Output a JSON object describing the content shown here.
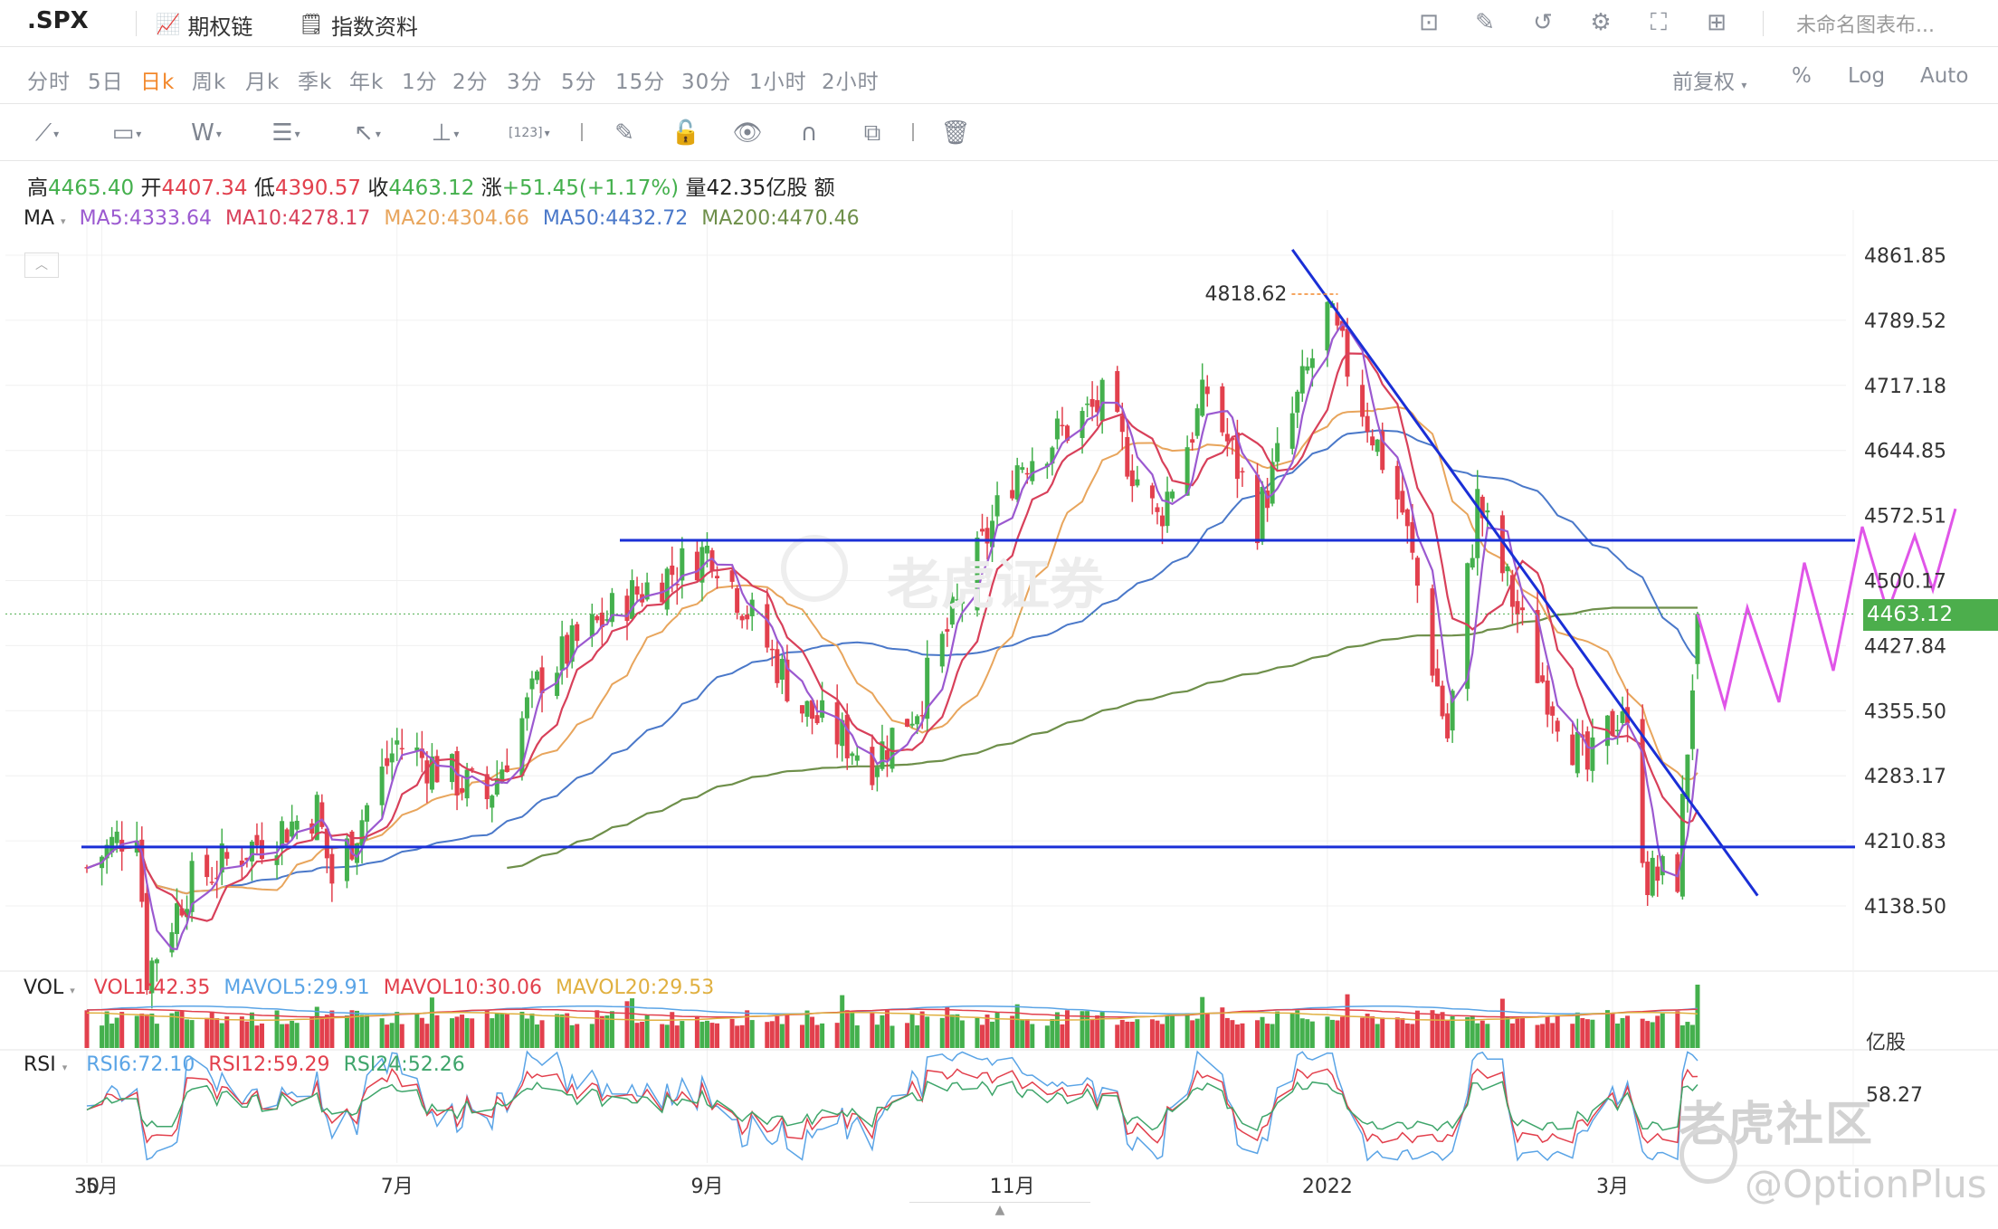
{
  "header": {
    "symbol": ".SPX",
    "options_chain_label": "期权链",
    "index_info_label": "指数资料",
    "layout_name": "未命名图表布...",
    "icons": [
      "chart-icon",
      "edit-icon",
      "refresh-icon",
      "settings-icon",
      "fullscreen-icon",
      "layout-grid-icon"
    ]
  },
  "periods": [
    "分时",
    "5日",
    "日k",
    "周k",
    "月k",
    "季k",
    "年k",
    "1分",
    "2分",
    "3分",
    "5分",
    "15分",
    "30分",
    "1小时",
    "2小时"
  ],
  "active_period": "日k",
  "right_options": {
    "adjust": "前复权",
    "percent": "%",
    "log": "Log",
    "auto": "Auto"
  },
  "tools": [
    "line-tool-icon",
    "rect-tool-icon",
    "wave-tool-icon",
    "fib-tool-icon",
    "arrow-tool-icon",
    "measure-tool-icon",
    "number-tool-icon",
    "brush-icon",
    "lock-icon",
    "eye-icon",
    "magnet-icon",
    "clone-icon",
    "trash-icon"
  ],
  "quote": {
    "high_label": "高",
    "high": "4465.40",
    "open_label": "开",
    "open": "4407.34",
    "low_label": "低",
    "low": "4390.57",
    "close_label": "收",
    "close": "4463.12",
    "change_label": "涨",
    "change": "+51.45(+1.17%)",
    "volume_label": "量",
    "volume": "42.35亿股",
    "amount_label": "额"
  },
  "ma": {
    "label": "MA",
    "ma5": "MA5:4333.64",
    "ma10": "MA10:4278.17",
    "ma20": "MA20:4304.66",
    "ma50": "MA50:4432.72",
    "ma200": "MA200:4470.46",
    "colors": {
      "ma5": "#9b59d0",
      "ma10": "#d8405a",
      "ma20": "#e8a55c",
      "ma50": "#4a78c9",
      "ma200": "#6e8f4a"
    }
  },
  "vol": {
    "label": "VOL",
    "vol1": "VOL1:42.35",
    "mavol5": "MAVOL5:29.91",
    "mavol10": "MAVOL10:30.06",
    "mavol20": "MAVOL20:29.53",
    "unit": "亿股"
  },
  "rsi": {
    "label": "RSI",
    "rsi6": "RSI6:72.10",
    "rsi12": "RSI12:59.29",
    "rsi24": "RSI24:52.26",
    "axis_value": "58.27"
  },
  "price_axis": [
    "4861.85",
    "4789.52",
    "4717.18",
    "4644.85",
    "4572.51",
    "4500.17",
    "4427.84",
    "4355.50",
    "4283.17",
    "4210.83",
    "4138.50"
  ],
  "current_price": "4463.12",
  "peak_label": "4818.62",
  "time_axis": [
    "30",
    "5月",
    "7月",
    "9月",
    "11月",
    "2022",
    "3月"
  ],
  "watermarks": {
    "center": "老虎证券",
    "community": "老虎社区",
    "author": "@OptionPlus"
  },
  "colors": {
    "up": "#44b04d",
    "down": "#e2404d",
    "trendline": "#1a2fd6",
    "projection": "#e055e8",
    "accent": "#f2872a"
  },
  "chart_data": {
    "type": "candlestick",
    "title": ".SPX",
    "ylim": [
      4100,
      4880
    ],
    "close_path": [
      [
        "2021-04-30",
        4181
      ],
      [
        "2021-05-10",
        4232
      ],
      [
        "2021-05-12",
        4063
      ],
      [
        "2021-05-20",
        4160
      ],
      [
        "2021-06-01",
        4202
      ],
      [
        "2021-06-15",
        4246
      ],
      [
        "2021-06-18",
        4166
      ],
      [
        "2021-07-01",
        4320
      ],
      [
        "2021-07-19",
        4258
      ],
      [
        "2021-07-30",
        4395
      ],
      [
        "2021-08-16",
        4480
      ],
      [
        "2021-09-02",
        4537
      ],
      [
        "2021-09-20",
        4358
      ],
      [
        "2021-10-04",
        4300
      ],
      [
        "2021-10-13",
        4363
      ],
      [
        "2021-11-02",
        4630
      ],
      [
        "2021-11-19",
        4697
      ],
      [
        "2021-11-30",
        4567
      ],
      [
        "2021-12-10",
        4712
      ],
      [
        "2021-12-20",
        4568
      ],
      [
        "2022-01-03",
        4797
      ],
      [
        "2022-01-18",
        4577
      ],
      [
        "2022-01-27",
        4326
      ],
      [
        "2022-02-02",
        4589
      ],
      [
        "2022-02-14",
        4401
      ],
      [
        "2022-02-24",
        4288
      ],
      [
        "2022-03-03",
        4363
      ],
      [
        "2022-03-08",
        4170
      ],
      [
        "2022-03-14",
        4173
      ],
      [
        "2022-03-18",
        4463
      ]
    ],
    "horizontal_levels": [
      4545,
      4204
    ],
    "downtrend_line": [
      [
        "2021-12-27",
        4868
      ],
      [
        "2022-03-30",
        4150
      ]
    ],
    "last_volume": "42.35",
    "rsi6": 72.1,
    "rsi12": 59.29,
    "rsi24": 52.26
  }
}
